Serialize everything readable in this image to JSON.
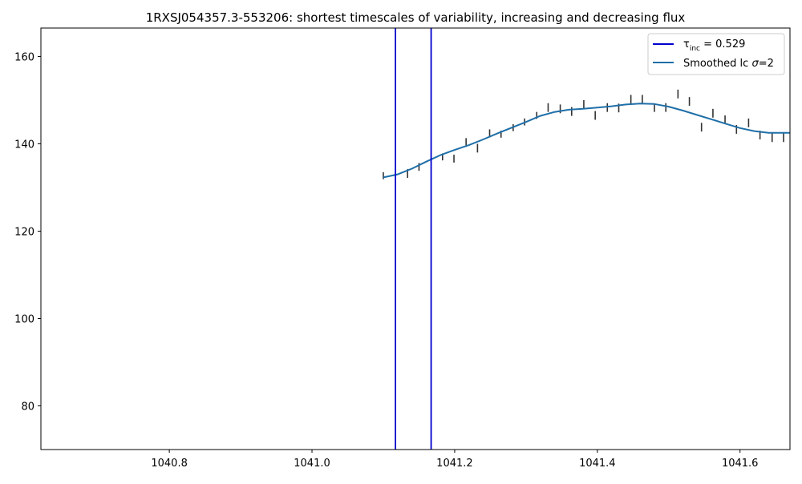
{
  "chart_data": {
    "type": "line",
    "title": "1RXSJ054357.3-553206: shortest timescales of variability, increasing and decreasing flux",
    "xlabel": "",
    "ylabel": "",
    "xlim": [
      1040.62,
      1041.67
    ],
    "ylim": [
      70,
      166.5
    ],
    "x_ticks": [
      1040.8,
      1041.0,
      1041.2,
      1041.4,
      1041.6
    ],
    "x_tick_labels": [
      "1040.8",
      "1041.0",
      "1041.2",
      "1041.4",
      "1041.6"
    ],
    "y_ticks": [
      80,
      100,
      120,
      140,
      160
    ],
    "y_tick_labels": [
      "80",
      "100",
      "120",
      "140",
      "160"
    ],
    "grid": false,
    "legend_position": "top-right",
    "vertical_lines": {
      "name": "τinc = 0.529",
      "color": "#0000cc",
      "x": [
        1041.117,
        1041.167
      ]
    },
    "smoothed_series": {
      "name": "Smoothed lc σ=2",
      "color": "#1f6fa8",
      "x": [
        1041.1,
        1041.12,
        1041.14,
        1041.16,
        1041.18,
        1041.2,
        1041.22,
        1041.24,
        1041.26,
        1041.28,
        1041.3,
        1041.32,
        1041.34,
        1041.36,
        1041.38,
        1041.4,
        1041.42,
        1041.44,
        1041.46,
        1041.48,
        1041.5,
        1041.52,
        1041.54,
        1041.56,
        1041.58,
        1041.6,
        1041.62,
        1041.64,
        1041.66,
        1041.67
      ],
      "y": [
        132.3,
        133.0,
        134.3,
        135.9,
        137.4,
        138.6,
        139.7,
        141.0,
        142.4,
        143.7,
        145.0,
        146.4,
        147.3,
        147.8,
        148.0,
        148.3,
        148.6,
        149.0,
        149.2,
        149.1,
        148.5,
        147.6,
        146.6,
        145.6,
        144.6,
        143.6,
        142.9,
        142.5,
        142.5,
        142.5
      ]
    },
    "error_bars": {
      "color": "#333333",
      "points": [
        {
          "x": 1041.1,
          "y": 132.7,
          "err": 0.8
        },
        {
          "x": 1041.134,
          "y": 133.2,
          "err": 1.0
        },
        {
          "x": 1041.15,
          "y": 134.7,
          "err": 0.9
        },
        {
          "x": 1041.183,
          "y": 137.0,
          "err": 0.8
        },
        {
          "x": 1041.199,
          "y": 136.6,
          "err": 0.9
        },
        {
          "x": 1041.216,
          "y": 140.3,
          "err": 1.0
        },
        {
          "x": 1041.232,
          "y": 139.0,
          "err": 1.0
        },
        {
          "x": 1041.249,
          "y": 142.4,
          "err": 0.9
        },
        {
          "x": 1041.265,
          "y": 142.2,
          "err": 0.8
        },
        {
          "x": 1041.282,
          "y": 143.7,
          "err": 0.8
        },
        {
          "x": 1041.298,
          "y": 145.0,
          "err": 0.8
        },
        {
          "x": 1041.315,
          "y": 146.5,
          "err": 0.8
        },
        {
          "x": 1041.331,
          "y": 148.3,
          "err": 1.0
        },
        {
          "x": 1041.348,
          "y": 148.0,
          "err": 1.0
        },
        {
          "x": 1041.364,
          "y": 147.4,
          "err": 1.0
        },
        {
          "x": 1041.381,
          "y": 149.0,
          "err": 1.0
        },
        {
          "x": 1041.397,
          "y": 146.5,
          "err": 1.0
        },
        {
          "x": 1041.414,
          "y": 148.3,
          "err": 1.0
        },
        {
          "x": 1041.43,
          "y": 148.2,
          "err": 1.0
        },
        {
          "x": 1041.447,
          "y": 150.2,
          "err": 1.0
        },
        {
          "x": 1041.463,
          "y": 150.2,
          "err": 1.0
        },
        {
          "x": 1041.48,
          "y": 148.2,
          "err": 0.9
        },
        {
          "x": 1041.496,
          "y": 148.3,
          "err": 1.0
        },
        {
          "x": 1041.513,
          "y": 151.4,
          "err": 1.0
        },
        {
          "x": 1041.529,
          "y": 149.7,
          "err": 1.0
        },
        {
          "x": 1041.546,
          "y": 143.8,
          "err": 1.0
        },
        {
          "x": 1041.562,
          "y": 147.0,
          "err": 1.0
        },
        {
          "x": 1041.579,
          "y": 145.6,
          "err": 0.9
        },
        {
          "x": 1041.595,
          "y": 143.3,
          "err": 1.0
        },
        {
          "x": 1041.612,
          "y": 144.8,
          "err": 1.0
        },
        {
          "x": 1041.628,
          "y": 142.0,
          "err": 1.0
        },
        {
          "x": 1041.645,
          "y": 141.4,
          "err": 1.0
        },
        {
          "x": 1041.661,
          "y": 141.4,
          "err": 1.0
        }
      ]
    }
  }
}
